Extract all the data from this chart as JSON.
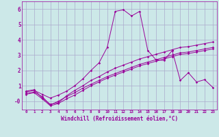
{
  "xlabel": "Windchill (Refroidissement éolien,°C)",
  "bg_color": "#cce8e8",
  "line_color": "#990099",
  "grid_color": "#aaaacc",
  "xlim": [
    -0.5,
    23.5
  ],
  "ylim": [
    -0.55,
    6.5
  ],
  "xticks": [
    0,
    1,
    2,
    3,
    4,
    5,
    6,
    7,
    8,
    9,
    10,
    11,
    12,
    13,
    14,
    15,
    16,
    17,
    18,
    19,
    20,
    21,
    22,
    23
  ],
  "yticks": [
    0,
    1,
    2,
    3,
    4,
    5,
    6
  ],
  "ytick_labels": [
    "-0",
    "1",
    "2",
    "3",
    "4",
    "5",
    "6"
  ],
  "series": [
    [
      0.65,
      0.75,
      0.2,
      -0.2,
      -0.1,
      0.35,
      0.7,
      1.0,
      1.35,
      1.6,
      1.9,
      2.15,
      2.35,
      2.55,
      2.75,
      2.9,
      3.05,
      3.2,
      3.35,
      3.5,
      3.55,
      3.65,
      3.75,
      3.85
    ],
    [
      0.5,
      0.6,
      0.3,
      -0.25,
      0.0,
      0.3,
      0.55,
      0.85,
      1.1,
      1.35,
      1.6,
      1.8,
      2.0,
      2.2,
      2.4,
      2.55,
      2.7,
      2.85,
      3.0,
      3.15,
      3.2,
      3.3,
      3.4,
      3.5
    ],
    [
      0.45,
      0.55,
      0.15,
      -0.3,
      -0.15,
      0.15,
      0.4,
      0.7,
      1.0,
      1.25,
      1.5,
      1.7,
      1.9,
      2.1,
      2.3,
      2.45,
      2.6,
      2.75,
      2.9,
      3.05,
      3.1,
      3.2,
      3.3,
      3.4
    ],
    [
      0.6,
      0.7,
      0.45,
      0.2,
      0.4,
      0.65,
      1.0,
      1.45,
      2.0,
      2.5,
      3.5,
      5.85,
      5.95,
      5.55,
      5.85,
      3.3,
      2.7,
      2.65,
      3.3,
      1.35,
      1.85,
      1.25,
      1.4,
      0.9
    ]
  ]
}
